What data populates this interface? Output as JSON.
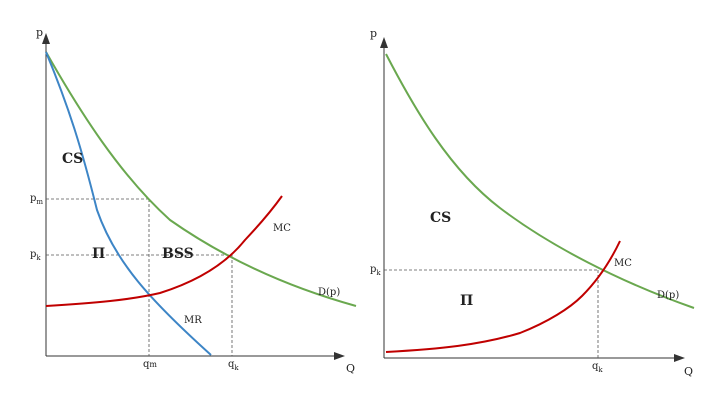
{
  "colors": {
    "axis": "#333333",
    "demand": "#6aa84f",
    "marginal_cost": "#c00000",
    "marginal_revenue": "#3d85c6",
    "guide": "#555555"
  },
  "left_panel": {
    "y_axis_label": "p",
    "x_axis_label": "Q",
    "ticks": {
      "pm": "p",
      "pm_sub": "m",
      "pk": "p",
      "pk_sub": "k",
      "qm": "q",
      "qm_sub": "m",
      "qk": "q",
      "qk_sub": "k"
    },
    "regions": {
      "cs": "CS",
      "profit": "Π",
      "bss": "BSS"
    },
    "curves": {
      "mc": "MC",
      "demand": "D(p)",
      "mr": "MR"
    }
  },
  "right_panel": {
    "y_axis_label": "p",
    "x_axis_label": "Q",
    "ticks": {
      "pk": "p",
      "pk_sub": "k",
      "qk": "q",
      "qk_sub": "k"
    },
    "regions": {
      "cs": "CS",
      "profit": "Π"
    },
    "curves": {
      "mc": "MC",
      "demand": "D(p)"
    }
  }
}
